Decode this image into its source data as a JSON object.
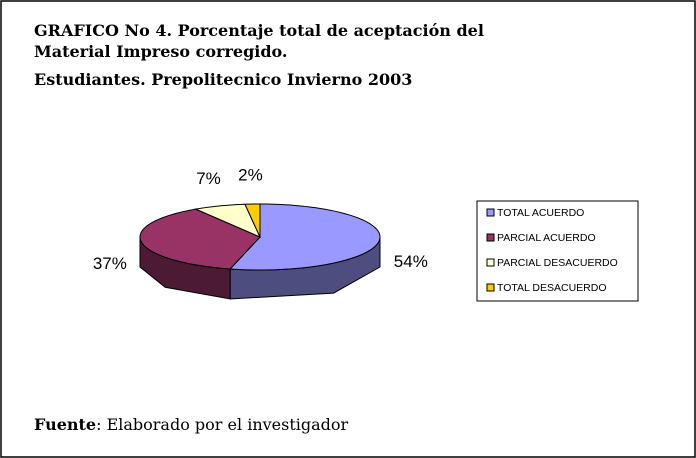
{
  "chart_data": {
    "type": "pie3d",
    "title": [
      "GRAFICO No 4.  Porcentaje total de aceptación del",
      "Material Impreso corregido.",
      "Estudiantes.  Prepolitecnico Invierno 2003"
    ],
    "categories": [
      "TOTAL ACUERDO",
      "PARCIAL ACUERDO",
      "PARCIAL DESACUERDO",
      "TOTAL DESACUERDO"
    ],
    "values": [
      54,
      37,
      7,
      2
    ],
    "value_labels": [
      "54%",
      "37%",
      "7%",
      "2%"
    ],
    "colors": [
      "#9999ff",
      "#993366",
      "#ffffcc",
      "#ffcc00"
    ],
    "legend": "right",
    "source": {
      "label": "Fuente",
      "text": ": Elaborado por el investigador"
    }
  }
}
